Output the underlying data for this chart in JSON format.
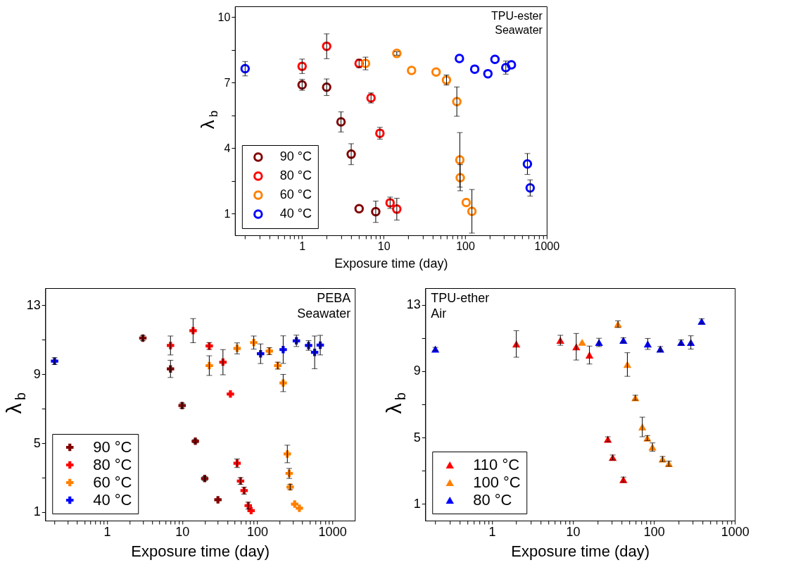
{
  "chart_data": [
    {
      "type": "scatter",
      "xlabel": "Exposure time (day)",
      "ylabel": "λ$_{b}$",
      "annotations": [
        "TPU-ester",
        "Seawater"
      ],
      "log": "x",
      "grid": false,
      "legend": "bottom left",
      "marker": "circle",
      "xlim": [
        0.15,
        1000
      ],
      "ylim": [
        0,
        10.5
      ],
      "xticks": [
        {
          "value": 0.2,
          "label": null
        },
        {
          "value": 0.3,
          "label": null
        },
        {
          "value": 0.4,
          "label": null
        },
        {
          "value": 0.5,
          "label": null
        },
        {
          "value": 0.6,
          "label": null
        },
        {
          "value": 0.7,
          "label": null
        },
        {
          "value": 0.8,
          "label": null
        },
        {
          "value": 0.9,
          "label": null
        },
        1,
        {
          "value": 2,
          "label": null
        },
        {
          "value": 3,
          "label": null
        },
        {
          "value": 4,
          "label": null
        },
        {
          "value": 5,
          "label": null
        },
        {
          "value": 6,
          "label": null
        },
        {
          "value": 7,
          "label": null
        },
        {
          "value": 8,
          "label": null
        },
        {
          "value": 9,
          "label": null
        },
        10,
        {
          "value": 20,
          "label": null
        },
        {
          "value": 30,
          "label": null
        },
        {
          "value": 40,
          "label": null
        },
        {
          "value": 50,
          "label": null
        },
        {
          "value": 60,
          "label": null
        },
        {
          "value": 70,
          "label": null
        },
        {
          "value": 80,
          "label": null
        },
        {
          "value": 90,
          "label": null
        },
        100,
        {
          "value": 200,
          "label": null
        },
        {
          "value": 300,
          "label": null
        },
        {
          "value": 400,
          "label": null
        },
        {
          "value": 500,
          "label": null
        },
        {
          "value": 600,
          "label": null
        },
        {
          "value": 700,
          "label": null
        },
        {
          "value": 800,
          "label": null
        },
        {
          "value": 900,
          "label": null
        },
        1000
      ],
      "yticks": [
        1,
        {
          "value": 2.5,
          "label": null
        },
        4,
        {
          "value": 5.5,
          "label": null
        },
        7,
        {
          "value": 8.5,
          "label": null
        },
        10
      ],
      "series": [
        {
          "name": "90 °C",
          "color": "#800000",
          "x": [
            1,
            2,
            3,
            4,
            5,
            8
          ],
          "values": [
            6.9,
            6.79,
            5.2,
            3.72,
            1.22,
            1.08
          ],
          "errors": [
            0.25,
            0.38,
            0.46,
            0.48,
            null,
            0.49
          ]
        },
        {
          "name": "80 °C",
          "color": "#ff0000",
          "x": [
            1,
            2,
            5,
            7,
            9,
            12,
            14.5
          ],
          "values": [
            7.75,
            8.67,
            7.88,
            6.3,
            4.68,
            1.49,
            1.2
          ],
          "errors": [
            0.33,
            0.57,
            0.19,
            0.23,
            0.27,
            0.26,
            0.5
          ]
        },
        {
          "name": "60 °C",
          "color": "#ff8000",
          "x": [
            6,
            14.5,
            22,
            44,
            59,
            79,
            86,
            87,
            103,
            121
          ],
          "values": [
            7.88,
            8.34,
            7.56,
            7.49,
            7.12,
            6.13,
            3.46,
            2.64,
            1.5,
            1.1
          ],
          "errors": [
            0.29,
            0.08,
            null,
            null,
            0.23,
            0.67,
            1.25,
            0.6,
            null,
            1.0
          ]
        },
        {
          "name": "40 °C",
          "color": "#0000ff",
          "x": [
            0.2,
            85,
            131,
            190,
            232,
            315,
            369,
            580,
            627
          ],
          "values": [
            7.64,
            8.11,
            7.62,
            7.41,
            8.07,
            7.69,
            7.82,
            3.27,
            2.17
          ],
          "errors": [
            0.33,
            null,
            null,
            null,
            null,
            0.3,
            null,
            0.48,
            0.37
          ]
        }
      ]
    },
    {
      "type": "scatter",
      "xlabel": "Exposure time (day)",
      "ylabel": "λ$_{b}$",
      "annotations": [
        "PEBA",
        "Seawater"
      ],
      "log": "x",
      "grid": false,
      "legend": "bottom left",
      "marker": "cross",
      "xlim": [
        0.15,
        2000
      ],
      "ylim": [
        0.5,
        14
      ],
      "xticks": [
        {
          "value": 0.2,
          "label": null
        },
        {
          "value": 0.3,
          "label": null
        },
        {
          "value": 0.4,
          "label": null
        },
        {
          "value": 0.5,
          "label": null
        },
        {
          "value": 0.6,
          "label": null
        },
        {
          "value": 0.7,
          "label": null
        },
        {
          "value": 0.8,
          "label": null
        },
        {
          "value": 0.9,
          "label": null
        },
        1,
        {
          "value": 2,
          "label": null
        },
        {
          "value": 3,
          "label": null
        },
        {
          "value": 4,
          "label": null
        },
        {
          "value": 5,
          "label": null
        },
        {
          "value": 6,
          "label": null
        },
        {
          "value": 7,
          "label": null
        },
        {
          "value": 8,
          "label": null
        },
        {
          "value": 9,
          "label": null
        },
        10,
        {
          "value": 20,
          "label": null
        },
        {
          "value": 30,
          "label": null
        },
        {
          "value": 40,
          "label": null
        },
        {
          "value": 50,
          "label": null
        },
        {
          "value": 60,
          "label": null
        },
        {
          "value": 70,
          "label": null
        },
        {
          "value": 80,
          "label": null
        },
        {
          "value": 90,
          "label": null
        },
        100,
        {
          "value": 200,
          "label": null
        },
        {
          "value": 300,
          "label": null
        },
        {
          "value": 400,
          "label": null
        },
        {
          "value": 500,
          "label": null
        },
        {
          "value": 600,
          "label": null
        },
        {
          "value": 700,
          "label": null
        },
        {
          "value": 800,
          "label": null
        },
        {
          "value": 900,
          "label": null
        },
        1000
      ],
      "yticks": [
        1,
        {
          "value": 3,
          "label": null
        },
        5,
        {
          "value": 7,
          "label": null
        },
        9,
        {
          "value": 11,
          "label": null
        },
        13
      ],
      "series": [
        {
          "name": "90 °C",
          "color": "#800000",
          "x": [
            3,
            7,
            10,
            15,
            20,
            30
          ],
          "values": [
            11.1,
            9.31,
            7.18,
            5.11,
            2.94,
            1.71
          ],
          "errors": [
            0.15,
            0.5,
            0.15,
            0.1,
            0.12,
            null
          ]
        },
        {
          "name": "80 °C",
          "color": "#ff0000",
          "x": [
            7,
            14,
            23,
            35,
            44,
            54,
            60,
            67,
            76,
            83
          ],
          "values": [
            10.67,
            11.53,
            10.64,
            9.7,
            7.85,
            3.83,
            2.8,
            2.24,
            1.37,
            1.08
          ],
          "errors": [
            0.55,
            0.7,
            0.2,
            0.73,
            null,
            0.25,
            0.2,
            0.2,
            0.2,
            null
          ]
        },
        {
          "name": "60 °C",
          "color": "#ff8000",
          "x": [
            23,
            54,
            90,
            145,
            188,
            222,
            252,
            267,
            275,
            316,
            365
          ],
          "values": [
            9.5,
            10.5,
            10.84,
            10.34,
            9.5,
            8.49,
            4.37,
            3.24,
            2.45,
            1.46,
            1.22
          ],
          "errors": [
            0.57,
            0.32,
            0.38,
            0.2,
            0.2,
            0.5,
            0.51,
            0.29,
            0.15,
            null,
            null
          ]
        },
        {
          "name": "40 °C",
          "color": "#0000ff",
          "x": [
            0.2,
            111,
            222,
            333,
            484,
            583,
            692
          ],
          "values": [
            9.76,
            10.19,
            10.43,
            10.94,
            10.67,
            10.27,
            10.69
          ],
          "errors": [
            0.2,
            0.57,
            0.8,
            0.33,
            0.28,
            0.95,
            0.57
          ]
        }
      ]
    },
    {
      "type": "scatter",
      "xlabel": "Exposure time (day)",
      "ylabel": "λ$_{b}$",
      "annotations": [
        "TPU-ether",
        "Air"
      ],
      "log": "x",
      "grid": false,
      "legend": "bottom left",
      "marker": "triangle",
      "xlim": [
        0.15,
        1000
      ],
      "ylim": [
        0,
        14
      ],
      "xticks": [
        {
          "value": 0.2,
          "label": null
        },
        {
          "value": 0.3,
          "label": null
        },
        {
          "value": 0.4,
          "label": null
        },
        {
          "value": 0.5,
          "label": null
        },
        {
          "value": 0.6,
          "label": null
        },
        {
          "value": 0.7,
          "label": null
        },
        {
          "value": 0.8,
          "label": null
        },
        {
          "value": 0.9,
          "label": null
        },
        1,
        {
          "value": 2,
          "label": null
        },
        {
          "value": 3,
          "label": null
        },
        {
          "value": 4,
          "label": null
        },
        {
          "value": 5,
          "label": null
        },
        {
          "value": 6,
          "label": null
        },
        {
          "value": 7,
          "label": null
        },
        {
          "value": 8,
          "label": null
        },
        {
          "value": 9,
          "label": null
        },
        10,
        {
          "value": 20,
          "label": null
        },
        {
          "value": 30,
          "label": null
        },
        {
          "value": 40,
          "label": null
        },
        {
          "value": 50,
          "label": null
        },
        {
          "value": 60,
          "label": null
        },
        {
          "value": 70,
          "label": null
        },
        {
          "value": 80,
          "label": null
        },
        {
          "value": 90,
          "label": null
        },
        100,
        {
          "value": 200,
          "label": null
        },
        {
          "value": 300,
          "label": null
        },
        {
          "value": 400,
          "label": null
        },
        {
          "value": 500,
          "label": null
        },
        {
          "value": 600,
          "label": null
        },
        {
          "value": 700,
          "label": null
        },
        {
          "value": 800,
          "label": null
        },
        {
          "value": 900,
          "label": null
        },
        1000
      ],
      "yticks": [
        1,
        {
          "value": 3,
          "label": null
        },
        5,
        {
          "value": 7,
          "label": null
        },
        9,
        {
          "value": 11,
          "label": null
        },
        13
      ],
      "series": [
        {
          "name": "110 °C",
          "color": "#ff0000",
          "x": [
            2,
            7,
            11,
            16,
            27,
            31,
            42
          ],
          "values": [
            10.64,
            10.86,
            10.47,
            9.97,
            4.9,
            3.8,
            2.47
          ],
          "errors": [
            0.8,
            0.3,
            0.8,
            0.54,
            0.15,
            0.15,
            0.15
          ]
        },
        {
          "name": "100 °C",
          "color": "#ff8000",
          "x": [
            13,
            36,
            47,
            59,
            72,
            83,
            96,
            128,
            153
          ],
          "values": [
            10.74,
            11.83,
            9.4,
            7.4,
            5.64,
            4.97,
            4.43,
            3.71,
            3.43
          ],
          "errors": [
            null,
            0.2,
            0.71,
            0.15,
            0.59,
            0.15,
            0.25,
            0.15,
            0.15
          ]
        },
        {
          "name": "80 °C",
          "color": "#0000ff",
          "x": [
            0.2,
            21,
            42,
            84,
            120,
            217,
            286,
            389
          ],
          "values": [
            10.33,
            10.73,
            10.86,
            10.64,
            10.33,
            10.73,
            10.73,
            12.0
          ],
          "errors": [
            0.1,
            0.25,
            0.15,
            0.33,
            0.15,
            0.15,
            0.4,
            0.15
          ]
        }
      ]
    }
  ]
}
